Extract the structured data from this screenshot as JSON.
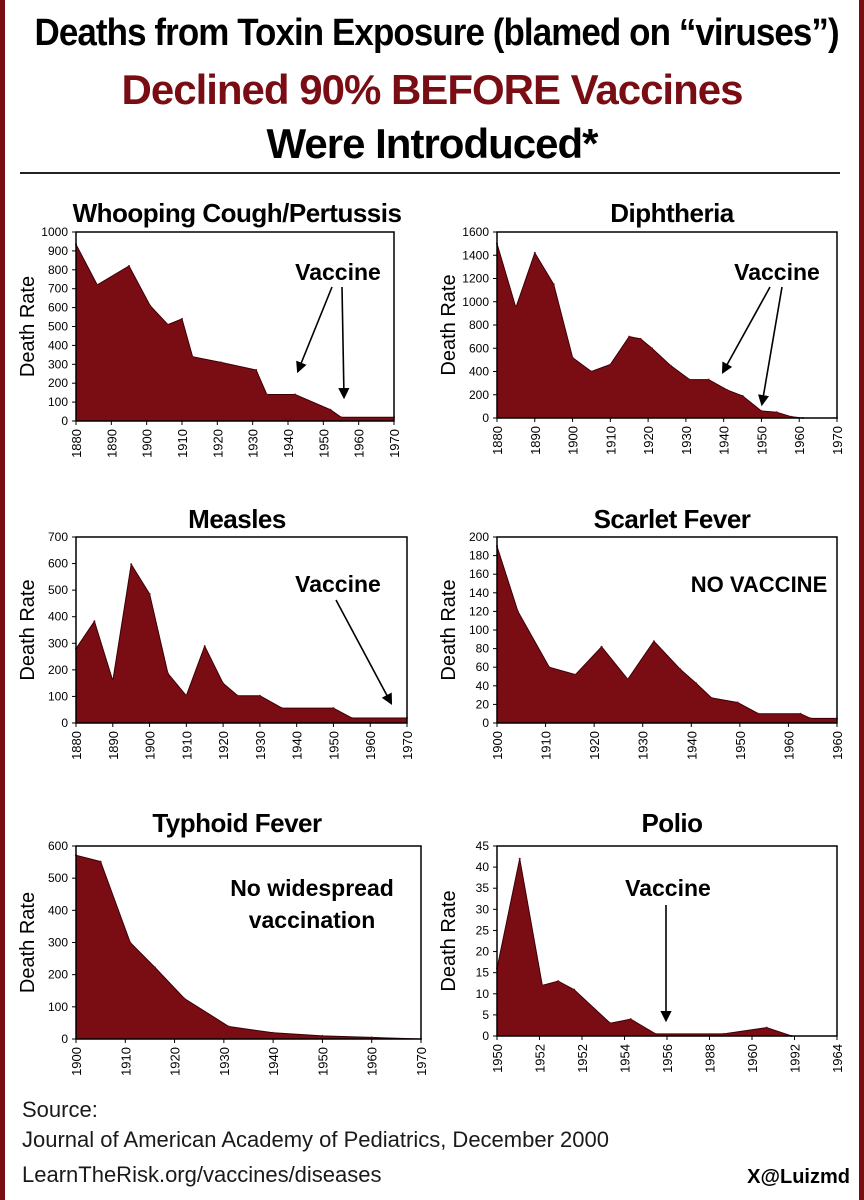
{
  "header": {
    "line1": "Deaths from Toxin Exposure (blamed on “viruses”)",
    "line2": "Declined 90% BEFORE Vaccines",
    "line3": "Were Introduced*"
  },
  "footer": {
    "source_label": "Source:",
    "journal": "Journal of American Academy of Pediatrics, December 2000",
    "url": "LearnTheRisk.org/vaccines/diseases",
    "handle": "X@Luizmd"
  },
  "colors": {
    "fill": "#7a0c14",
    "title_accent": "#7a0c14",
    "axis": "#000000"
  },
  "chart_data": [
    {
      "type": "area",
      "title": "Whooping Cough/Pertussis",
      "ylabel": "Death Rate",
      "annotation": "Vaccine",
      "xlim": [
        1880,
        1970
      ],
      "ylim": [
        0,
        1000
      ],
      "xticks": [
        "1880",
        "1890",
        "1900",
        "1910",
        "1920",
        "1930",
        "1940",
        "1950",
        "1960",
        "1970"
      ],
      "yticks": [
        "0",
        "100",
        "200",
        "300",
        "400",
        "500",
        "600",
        "700",
        "800",
        "900",
        "1000"
      ],
      "x": [
        1880,
        1886,
        1895,
        1901,
        1906,
        1910,
        1913,
        1921,
        1931,
        1934,
        1942,
        1952,
        1955,
        1970
      ],
      "y": [
        935,
        720,
        820,
        610,
        510,
        540,
        340,
        310,
        270,
        140,
        140,
        60,
        20,
        20
      ]
    },
    {
      "type": "area",
      "title": "Diphtheria",
      "ylabel": "Death Rate",
      "annotation": "Vaccine",
      "xlim": [
        1880,
        1970
      ],
      "ylim": [
        0,
        1600
      ],
      "xticks": [
        "1880",
        "1890",
        "1900",
        "1910",
        "1920",
        "1930",
        "1940",
        "1950",
        "1960",
        "1970"
      ],
      "yticks": [
        "0",
        "200",
        "400",
        "600",
        "800",
        "1000",
        "1200",
        "1400",
        "1600"
      ],
      "x": [
        1880,
        1885,
        1890,
        1895,
        1900,
        1905,
        1910,
        1915,
        1918,
        1921,
        1926,
        1931,
        1936,
        1941,
        1945,
        1950,
        1954,
        1958,
        1961,
        1970
      ],
      "y": [
        1500,
        950,
        1420,
        1150,
        520,
        400,
        460,
        700,
        680,
        600,
        450,
        330,
        330,
        240,
        190,
        60,
        50,
        10,
        0,
        0
      ]
    },
    {
      "type": "area",
      "title": "Measles",
      "ylabel": "Death Rate",
      "annotation": "Vaccine",
      "xlim": [
        1880,
        1970
      ],
      "ylim": [
        0,
        750
      ],
      "xticks": [
        "1880",
        "1890",
        "1900",
        "1910",
        "1920",
        "1930",
        "1940",
        "1950",
        "1960",
        "1970"
      ],
      "yticks": [
        "0",
        "100",
        "200",
        "300",
        "400",
        "500",
        "600",
        "700"
      ],
      "x": [
        1880,
        1885,
        1890,
        1895,
        1900,
        1905,
        1910,
        1915,
        1920,
        1924,
        1930,
        1936,
        1950,
        1955,
        1970
      ],
      "y": [
        300,
        410,
        170,
        640,
        520,
        200,
        110,
        310,
        160,
        110,
        110,
        60,
        60,
        20,
        20
      ]
    },
    {
      "type": "area",
      "title": "Scarlet Fever",
      "ylabel": "Death Rate",
      "annotation": "NO VACCINE",
      "xlim": [
        1900,
        1965
      ],
      "ylim": [
        0,
        200
      ],
      "xticks": [
        "1900",
        "1910",
        "1920",
        "1930",
        "1940",
        "1950",
        "1960",
        "1960"
      ],
      "yticks": [
        "0",
        "20",
        "40",
        "60",
        "80",
        "100",
        "120",
        "140",
        "160",
        "180",
        "200"
      ],
      "x": [
        1900,
        1904,
        1910,
        1915,
        1920,
        1925,
        1930,
        1935,
        1938,
        1941,
        1946,
        1950,
        1958,
        1960,
        1965
      ],
      "y": [
        190,
        120,
        60,
        52,
        82,
        47,
        88,
        58,
        43,
        27,
        22,
        10,
        10,
        5,
        5
      ]
    },
    {
      "type": "area",
      "title": "Typhoid Fever",
      "ylabel": "Death Rate",
      "annotation": "No widespread vaccination",
      "xlim": [
        1900,
        1970
      ],
      "ylim": [
        0,
        620
      ],
      "xticks": [
        "1900",
        "1910",
        "1920",
        "1930",
        "1940",
        "1950",
        "1960",
        "1970"
      ],
      "yticks": [
        "0",
        "100",
        "200",
        "300",
        "400",
        "500",
        "600"
      ],
      "x": [
        1900,
        1905,
        1911,
        1916,
        1922,
        1931,
        1940,
        1950,
        1960,
        1970
      ],
      "y": [
        590,
        570,
        310,
        230,
        130,
        40,
        20,
        10,
        5,
        0
      ]
    },
    {
      "type": "area",
      "title": "Polio",
      "ylabel": "Death Rate",
      "annotation": "Vaccine",
      "xlim": [
        1950,
        1965
      ],
      "ylim": [
        0,
        45
      ],
      "xticks": [
        "1950",
        "1952",
        "1952",
        "1954",
        "1956",
        "1988",
        "1960",
        "1992",
        "1964"
      ],
      "yticks": [
        "0",
        "5",
        "10",
        "15",
        "20",
        "25",
        "30",
        "35",
        "40",
        "45"
      ],
      "x": [
        1950,
        1951,
        1952,
        1952.7,
        1953.4,
        1955,
        1955.9,
        1957,
        1960,
        1961.9,
        1963
      ],
      "y": [
        16,
        42,
        12,
        13,
        11,
        3,
        4,
        0.5,
        0.5,
        2,
        0
      ]
    }
  ]
}
